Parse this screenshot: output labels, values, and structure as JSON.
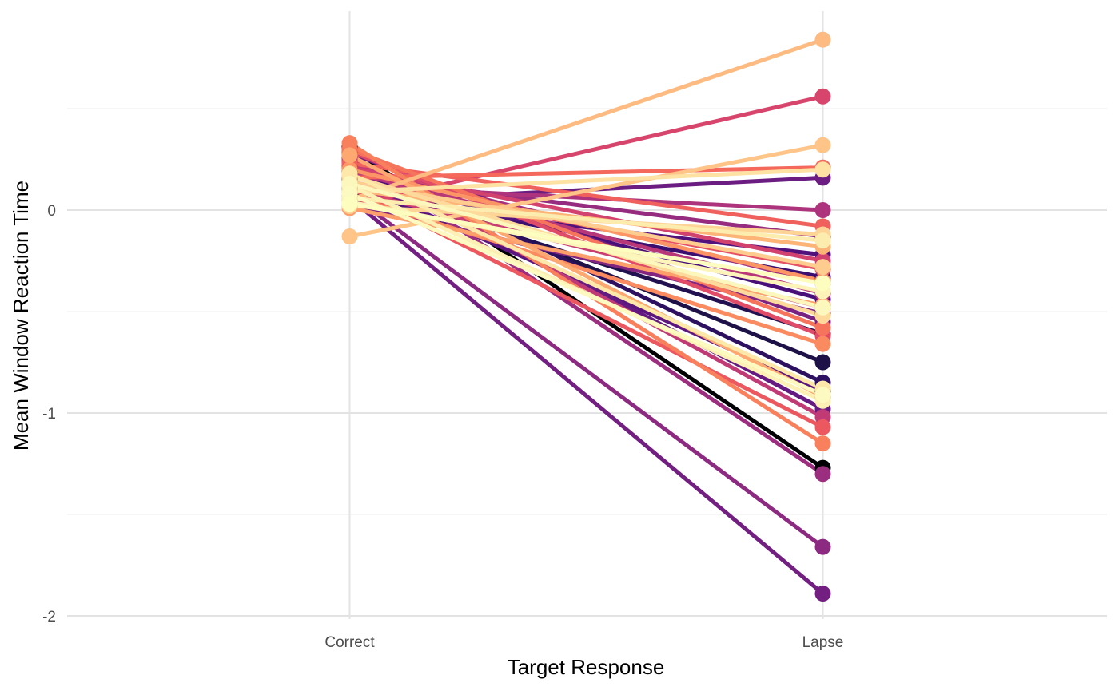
{
  "chart_data": {
    "type": "line",
    "title": "",
    "xlabel": "Target Response",
    "ylabel": "Mean Window Reaction Time",
    "categories": [
      "Correct",
      "Lapse"
    ],
    "ylim": [
      -2.0,
      0.97
    ],
    "y_ticks": [
      0,
      -1,
      -2
    ],
    "y_tick_labels": [
      "0",
      "-1",
      "-2"
    ],
    "grid": true,
    "legend": "none",
    "colormap": "magma",
    "series": [
      {
        "values": [
          0.31,
          -1.27
        ],
        "color": "#000004"
      },
      {
        "values": [
          0.2,
          -0.75
        ],
        "color": "#1d1147"
      },
      {
        "values": [
          0.13,
          -0.61
        ],
        "color": "#221150"
      },
      {
        "values": [
          0.26,
          -0.85
        ],
        "color": "#2d1160"
      },
      {
        "values": [
          0.09,
          -0.33
        ],
        "color": "#3b0f70"
      },
      {
        "values": [
          0.18,
          -0.44
        ],
        "color": "#4a1079"
      },
      {
        "values": [
          0.05,
          -0.22
        ],
        "color": "#51127c"
      },
      {
        "values": [
          0.15,
          -0.89
        ],
        "color": "#5a167e"
      },
      {
        "values": [
          0.24,
          -0.98
        ],
        "color": "#641a80"
      },
      {
        "values": [
          0.04,
          0.16
        ],
        "color": "#6b1d81"
      },
      {
        "values": [
          0.06,
          -1.89
        ],
        "color": "#721f81"
      },
      {
        "values": [
          0.28,
          -0.55
        ],
        "color": "#7a2282"
      },
      {
        "values": [
          0.03,
          -0.51
        ],
        "color": "#822581"
      },
      {
        "values": [
          0.08,
          -1.66
        ],
        "color": "#8c2981"
      },
      {
        "values": [
          0.17,
          -0.13
        ],
        "color": "#952c80"
      },
      {
        "values": [
          0.27,
          -1.3
        ],
        "color": "#9c2e7f"
      },
      {
        "values": [
          0.22,
          -0.36
        ],
        "color": "#a3307e"
      },
      {
        "values": [
          0.12,
          0.0
        ],
        "color": "#ad347c"
      },
      {
        "values": [
          0.19,
          -0.41
        ],
        "color": "#b73779"
      },
      {
        "values": [
          0.25,
          -1.02
        ],
        "color": "#c03a76"
      },
      {
        "values": [
          0.1,
          -0.48
        ],
        "color": "#c83e73"
      },
      {
        "values": [
          0.21,
          -0.25
        ],
        "color": "#d1426f"
      },
      {
        "values": [
          0.02,
          0.56
        ],
        "color": "#d8456c"
      },
      {
        "values": [
          0.29,
          -0.62
        ],
        "color": "#e04c67"
      },
      {
        "values": [
          0.14,
          -0.29
        ],
        "color": "#e65164"
      },
      {
        "values": [
          0.11,
          -1.07
        ],
        "color": "#ec5860"
      },
      {
        "values": [
          0.23,
          -0.08
        ],
        "color": "#f0605d"
      },
      {
        "values": [
          0.16,
          0.21
        ],
        "color": "#f4695c"
      },
      {
        "values": [
          0.3,
          -0.58
        ],
        "color": "#f6745c"
      },
      {
        "values": [
          0.33,
          -1.15
        ],
        "color": "#f8805d"
      },
      {
        "values": [
          0.07,
          -0.66
        ],
        "color": "#fa8b60"
      },
      {
        "values": [
          0.2,
          -0.35
        ],
        "color": "#fb9565"
      },
      {
        "values": [
          0.01,
          -0.47
        ],
        "color": "#fc9f6a"
      },
      {
        "values": [
          0.27,
          -0.92
        ],
        "color": "#fda870"
      },
      {
        "values": [
          0.1,
          -0.18
        ],
        "color": "#fdb477"
      },
      {
        "values": [
          0.05,
          0.84
        ],
        "color": "#febb81"
      },
      {
        "values": [
          -0.13,
          0.32
        ],
        "color": "#fec488"
      },
      {
        "values": [
          0.14,
          -0.28
        ],
        "color": "#fecc8f"
      },
      {
        "values": [
          0.02,
          -0.12
        ],
        "color": "#fed396"
      },
      {
        "values": [
          0.17,
          -0.52
        ],
        "color": "#fdda9c"
      },
      {
        "values": [
          0.09,
          0.2
        ],
        "color": "#fde2a3"
      },
      {
        "values": [
          0.18,
          -0.88
        ],
        "color": "#fde7a9"
      },
      {
        "values": [
          0.06,
          -0.15
        ],
        "color": "#fcecae"
      },
      {
        "values": [
          0.12,
          -0.94
        ],
        "color": "#fcf0b4"
      },
      {
        "values": [
          0.04,
          -0.4
        ],
        "color": "#fcf4b9"
      },
      {
        "values": [
          0.13,
          -0.48
        ],
        "color": "#fcf7bc"
      },
      {
        "values": [
          0.08,
          -0.91
        ],
        "color": "#fcfac0"
      },
      {
        "values": [
          0.03,
          -0.36
        ],
        "color": "#fcfdbf"
      }
    ]
  }
}
